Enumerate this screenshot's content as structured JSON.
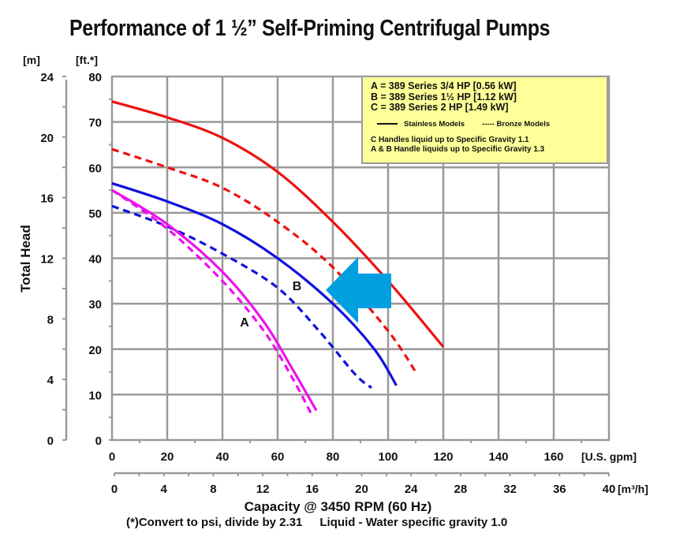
{
  "title": "Performance of 1 ½” Self-Priming Centrifugal Pumps",
  "chart_data": {
    "type": "line",
    "title": "Performance of 1 ½” Self-Priming Centrifugal Pumps",
    "xlabel": "Capacity @ 3450 RPM (60 Hz)",
    "ylabel": "Total Head",
    "x_unit": "[U.S. gpm]",
    "x2_unit": "[m³/h]",
    "y_unit": "[ft.*]",
    "y2_unit": "[m]",
    "xlim": [
      0,
      180
    ],
    "ylim": [
      0,
      80
    ],
    "x2lim": [
      0,
      40
    ],
    "y2lim": [
      0,
      24
    ],
    "grid": true,
    "x_ticks": [
      "0",
      "20",
      "40",
      "60",
      "80",
      "100",
      "120",
      "140",
      "160"
    ],
    "x2_ticks": [
      "0",
      "4",
      "8",
      "12",
      "16",
      "20",
      "24",
      "28",
      "32",
      "36",
      "40"
    ],
    "y_ticks": [
      "0",
      "10",
      "20",
      "30",
      "40",
      "50",
      "60",
      "70",
      "80"
    ],
    "y2_ticks": [
      "0",
      "4",
      "8",
      "12",
      "16",
      "20",
      "24"
    ],
    "series": [
      {
        "name": "C Stainless",
        "pump": "C",
        "style": "solid",
        "color": "#ee1111",
        "x": [
          0,
          20,
          40,
          60,
          80,
          100,
          120
        ],
        "y": [
          74.5,
          71,
          66.5,
          59,
          48,
          35,
          20.5
        ]
      },
      {
        "name": "C Bronze",
        "pump": "C",
        "style": "dashed",
        "color": "#ee1111",
        "x": [
          0,
          20,
          40,
          60,
          80,
          100,
          110
        ],
        "y": [
          64,
          60,
          55.5,
          48,
          38,
          24,
          15
        ]
      },
      {
        "name": "B Stainless",
        "pump": "B",
        "style": "solid",
        "color": "#1111dd",
        "x": [
          0,
          20,
          40,
          60,
          80,
          95,
          103
        ],
        "y": [
          56.5,
          52.5,
          47.5,
          40,
          30,
          20,
          12
        ]
      },
      {
        "name": "B Bronze",
        "pump": "B",
        "style": "dashed",
        "color": "#1111dd",
        "x": [
          0,
          20,
          40,
          60,
          75,
          88,
          94
        ],
        "y": [
          51.5,
          47,
          41,
          33.5,
          24,
          14.5,
          11.5
        ]
      },
      {
        "name": "A Stainless",
        "pump": "A",
        "style": "solid",
        "color": "#ee11ee",
        "x": [
          0,
          20,
          40,
          55,
          65,
          74
        ],
        "y": [
          55,
          47.5,
          37,
          26,
          16,
          6.5
        ]
      },
      {
        "name": "A Bronze",
        "pump": "A",
        "style": "dashed",
        "color": "#ee11ee",
        "x": [
          0,
          20,
          40,
          55,
          65,
          72
        ],
        "y": [
          55,
          46.5,
          35,
          24,
          14,
          6
        ]
      }
    ],
    "curve_labels": [
      {
        "text": "A",
        "x": 48,
        "y": 26
      },
      {
        "text": "B",
        "x": 67,
        "y": 34
      }
    ],
    "annotation_arrow": {
      "color": "#00a0e0",
      "points_to": "B Stainless",
      "x": 78,
      "y": 33
    }
  },
  "legend": {
    "series_lines": [
      "A = 389 Series 3/4 HP [0.56 kW]",
      "B = 389 Series 1½ HP [1.12 kW]",
      "C = 389 Series 2 HP [1.49 kW]"
    ],
    "solid_label": "Stainless Models",
    "dashed_label": "----- Bronze Models",
    "notes": [
      "C Handles liquid up to Specific Gravity 1.1",
      "A & B Handle liquids up to Specific Gravity 1.3"
    ]
  },
  "footer": {
    "line1": "Capacity @ 3450 RPM (60 Hz)",
    "note_convert": "(*)Convert to psi, divide by 2.31",
    "note_liquid": "Liquid - Water specific gravity 1.0"
  }
}
